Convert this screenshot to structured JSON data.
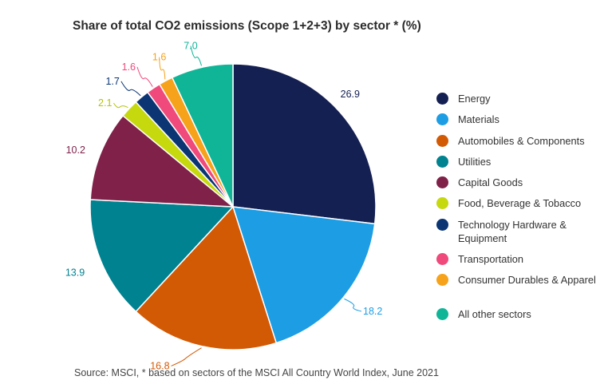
{
  "title": "Share of total CO2 emissions (Scope 1+2+3) by sector * (%)",
  "source": "Source:  MSCI, * based on sectors of the MSCI All Country World Index, June 2021",
  "chart_data": {
    "type": "pie",
    "title": "Share of total CO2 emissions (Scope 1+2+3) by sector * (%)",
    "unit": "%",
    "legend_position": "right",
    "slices": [
      {
        "label": "Energy",
        "value": 26.9,
        "value_label": "26.9",
        "color": "#152052",
        "label_color": "#152052"
      },
      {
        "label": "Materials",
        "value": 18.2,
        "value_label": "18.2",
        "color": "#1d9de3",
        "label_color": "#1d9de3"
      },
      {
        "label": "Automobiles & Components",
        "value": 16.8,
        "value_label": "16.8",
        "color": "#d35a05",
        "label_color": "#d35a05"
      },
      {
        "label": "Utilities",
        "value": 13.9,
        "value_label": "13.9",
        "color": "#008290",
        "label_color": "#008290"
      },
      {
        "label": "Capital Goods",
        "value": 10.2,
        "value_label": "10.2",
        "color": "#7f2148",
        "label_color": "#7f2148"
      },
      {
        "label": "Food, Beverage & Tobacco",
        "value": 2.1,
        "value_label": "2.1",
        "color": "#c6d80e",
        "label_color": "#b4c40a"
      },
      {
        "label": "Technology Hardware & Equipment",
        "value": 1.7,
        "value_label": "1.7",
        "color": "#0b3573",
        "label_color": "#0b3573"
      },
      {
        "label": "Transportation",
        "value": 1.6,
        "value_label": "1.6",
        "color": "#f0497b",
        "label_color": "#f0497b"
      },
      {
        "label": "Consumer Durables & Apparel",
        "value": 1.6,
        "value_label": "1.6",
        "color": "#f6a21a",
        "label_color": "#f6a21a"
      },
      {
        "label": "All other sectors",
        "value": 7.0,
        "value_label": "7.0",
        "color": "#10b597",
        "label_color": "#10b597"
      }
    ]
  }
}
